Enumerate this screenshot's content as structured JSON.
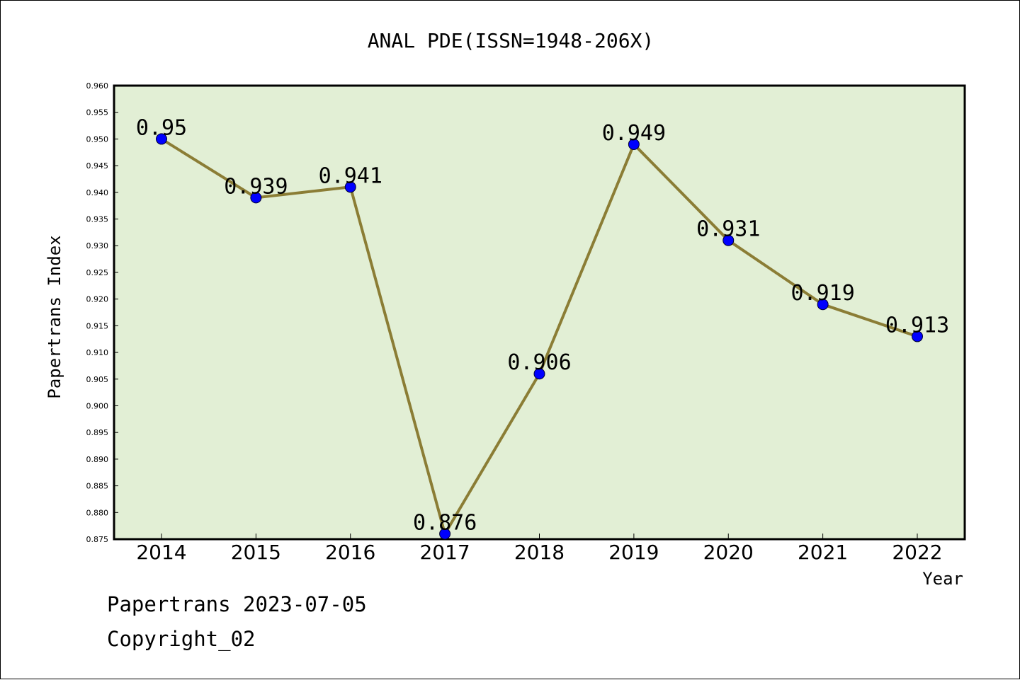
{
  "chart_data": {
    "type": "line",
    "title": "ANAL PDE(ISSN=1948-206X)",
    "xlabel": "Year",
    "ylabel": "Papertrans Index",
    "categories": [
      "2014",
      "2015",
      "2016",
      "2017",
      "2018",
      "2019",
      "2020",
      "2021",
      "2022"
    ],
    "series": [
      {
        "values": [
          0.95,
          0.939,
          0.941,
          0.876,
          0.906,
          0.949,
          0.931,
          0.919,
          0.913
        ],
        "labels": [
          "0.95",
          "0.939",
          "0.941",
          "0.876",
          "0.906",
          "0.949",
          "0.931",
          "0.919",
          "0.913"
        ]
      }
    ],
    "ylim": [
      0.875,
      0.96
    ],
    "yticks": [
      "0.875",
      "0.880",
      "0.885",
      "0.890",
      "0.895",
      "0.900",
      "0.905",
      "0.910",
      "0.915",
      "0.920",
      "0.925",
      "0.930",
      "0.935",
      "0.940",
      "0.945",
      "0.950",
      "0.955",
      "0.960"
    ],
    "grid": false,
    "colors": {
      "plot_background": "#e2efd5",
      "line": "#8b7d35",
      "marker": "#0000ff"
    }
  },
  "footer": {
    "line1": "Papertrans 2023-07-05",
    "line2": "Copyright_02"
  }
}
